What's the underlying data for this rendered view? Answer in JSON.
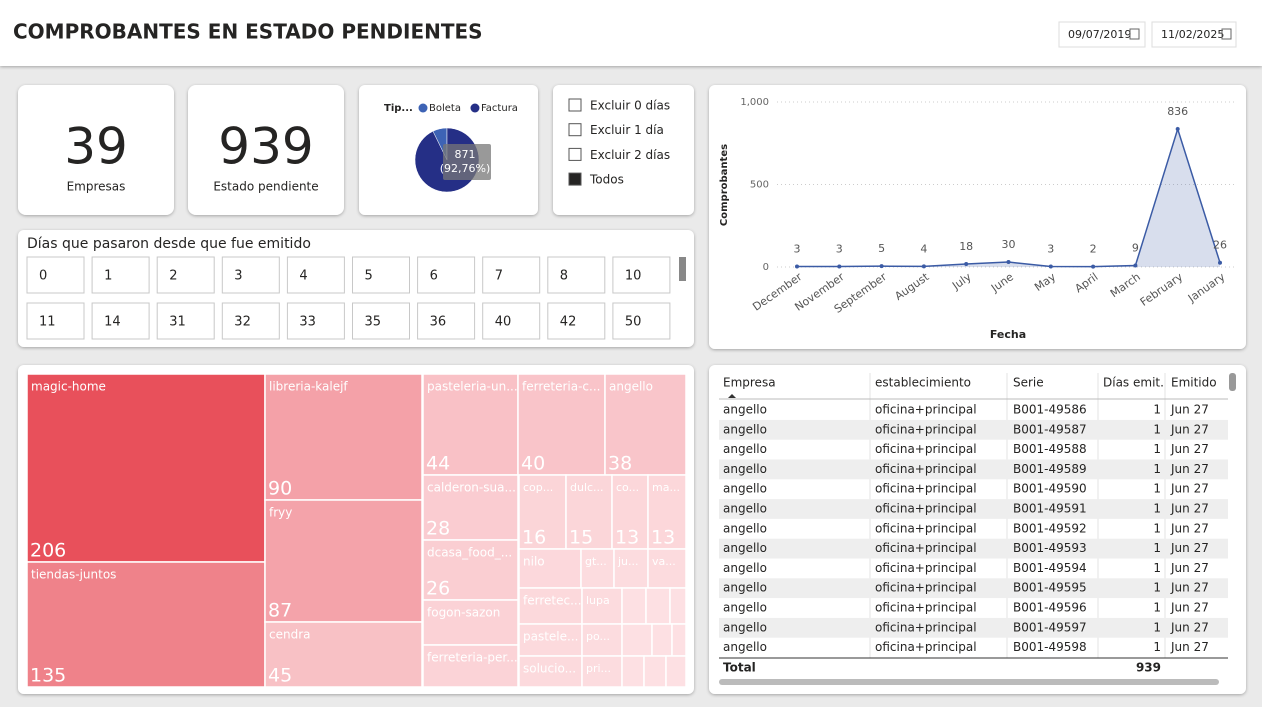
{
  "header": {
    "title": "COMPROBANTES EN ESTADO PENDIENTES",
    "date_from": "09/07/2019",
    "date_to": "11/02/2025"
  },
  "kpis": [
    {
      "value": 39,
      "label": "Empresas"
    },
    {
      "value": 939,
      "label": "Estado pendiente"
    }
  ],
  "day_filter": {
    "options": [
      "Excluir 0 días",
      "Excluir 1 día",
      "Excluir 2 días",
      "Todos"
    ],
    "selected": 3
  },
  "days_slicer": {
    "title": "Días que pasaron desde que fue emitido",
    "values": [
      0,
      1,
      2,
      3,
      4,
      5,
      6,
      7,
      8,
      10,
      11,
      14,
      31,
      32,
      33,
      35,
      36,
      40,
      42,
      50
    ]
  },
  "chart_data": [
    {
      "type": "pie",
      "legend_title": "Tip...",
      "categories": [
        "Boleta",
        "Factura"
      ],
      "values": [
        68,
        871
      ],
      "colors": [
        "#3d63b5",
        "#252f86"
      ],
      "value_labels": [
        null,
        "871"
      ],
      "percent_labels": [
        null,
        "(92,76%)"
      ]
    },
    {
      "type": "area",
      "x_label": "Fecha",
      "y_label": "Comprobantes",
      "categories": [
        "December",
        "November",
        "September",
        "August",
        "July",
        "June",
        "May",
        "April",
        "March",
        "February",
        "January"
      ],
      "values": [
        3,
        3,
        5,
        4,
        18,
        30,
        3,
        2,
        9,
        836,
        26
      ],
      "ylim": [
        0,
        1000
      ],
      "yticks": [
        0,
        500,
        {
          "value": 1000,
          "label": "1,000"
        }
      ],
      "color": "#3b5ba5",
      "grid": true
    },
    {
      "type": "treemap",
      "labels": [
        "magic-home",
        "tiendas-juntos",
        "libreria-kalejf",
        "fryy",
        "cendra",
        "pasteleria-un...",
        "ferreteria-c...",
        "angello",
        "calderon-sua...",
        "dcasa_food_...",
        "fogon-sazon",
        "ferreteria-per...",
        "cop...",
        "dulc...",
        "co...",
        "ma...",
        "nilo",
        "gt...",
        "ju...",
        "va...",
        "ferretec...",
        "pastele...",
        "solucio...",
        "lupa",
        "po...",
        "pri..."
      ],
      "values": [
        206,
        135,
        90,
        87,
        45,
        44,
        40,
        38,
        28,
        26,
        20,
        18,
        16,
        15,
        13,
        13,
        11,
        6,
        6,
        7,
        10,
        9,
        9,
        7,
        6,
        6
      ],
      "value_labels": [
        "206",
        "135",
        "90",
        "87",
        "45",
        "44",
        "40",
        "38",
        "28",
        "26",
        null,
        null,
        "16",
        "15",
        "13",
        "13",
        null,
        null,
        null,
        null,
        null,
        null,
        null,
        null,
        null,
        null
      ]
    }
  ],
  "table": {
    "columns": [
      "Empresa",
      "establecimiento",
      "Serie",
      "Días emit.",
      "Emitido"
    ],
    "rows": [
      [
        "angello",
        "oficina+principal",
        "B001-49586",
        1,
        "Jun 27"
      ],
      [
        "angello",
        "oficina+principal",
        "B001-49587",
        1,
        "Jun 27"
      ],
      [
        "angello",
        "oficina+principal",
        "B001-49588",
        1,
        "Jun 27"
      ],
      [
        "angello",
        "oficina+principal",
        "B001-49589",
        1,
        "Jun 27"
      ],
      [
        "angello",
        "oficina+principal",
        "B001-49590",
        1,
        "Jun 27"
      ],
      [
        "angello",
        "oficina+principal",
        "B001-49591",
        1,
        "Jun 27"
      ],
      [
        "angello",
        "oficina+principal",
        "B001-49592",
        1,
        "Jun 27"
      ],
      [
        "angello",
        "oficina+principal",
        "B001-49593",
        1,
        "Jun 27"
      ],
      [
        "angello",
        "oficina+principal",
        "B001-49594",
        1,
        "Jun 27"
      ],
      [
        "angello",
        "oficina+principal",
        "B001-49595",
        1,
        "Jun 27"
      ],
      [
        "angello",
        "oficina+principal",
        "B001-49596",
        1,
        "Jun 27"
      ],
      [
        "angello",
        "oficina+principal",
        "B001-49597",
        1,
        "Jun 27"
      ],
      [
        "angello",
        "oficina+principal",
        "B001-49598",
        1,
        "Jun 27"
      ]
    ],
    "total": {
      "label": "Total",
      "value": 939
    }
  }
}
